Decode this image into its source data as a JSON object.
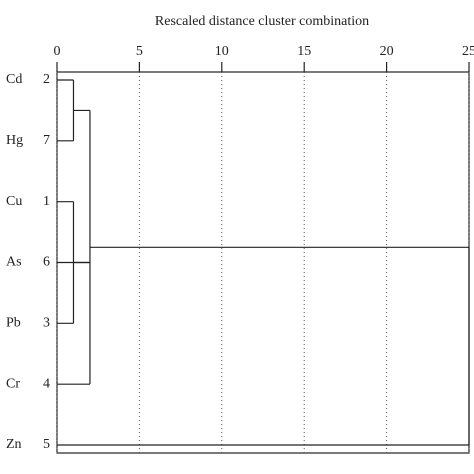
{
  "chart_data": {
    "type": "dendrogram",
    "title": "Rescaled distance cluster combination",
    "xlim": [
      0,
      25
    ],
    "xticks": [
      0,
      5,
      10,
      15,
      20,
      25
    ],
    "grid": true,
    "leaves": [
      {
        "label": "Cd",
        "case": "2"
      },
      {
        "label": "Hg",
        "case": "7"
      },
      {
        "label": "Cu",
        "case": "1"
      },
      {
        "label": "As",
        "case": "6"
      },
      {
        "label": "Pb",
        "case": "3"
      },
      {
        "label": "Cr",
        "case": "4"
      },
      {
        "label": "Zn",
        "case": "5"
      }
    ],
    "merges": [
      {
        "leaves": [
          0,
          1
        ],
        "merges": [],
        "height": 1
      },
      {
        "leaves": [
          2,
          4
        ],
        "merges": [],
        "height": 1
      },
      {
        "leaves": [
          3,
          5
        ],
        "merges": [
          0,
          1
        ],
        "height": 2
      },
      {
        "leaves": [
          6
        ],
        "merges": [
          2
        ],
        "height": 25
      }
    ]
  }
}
